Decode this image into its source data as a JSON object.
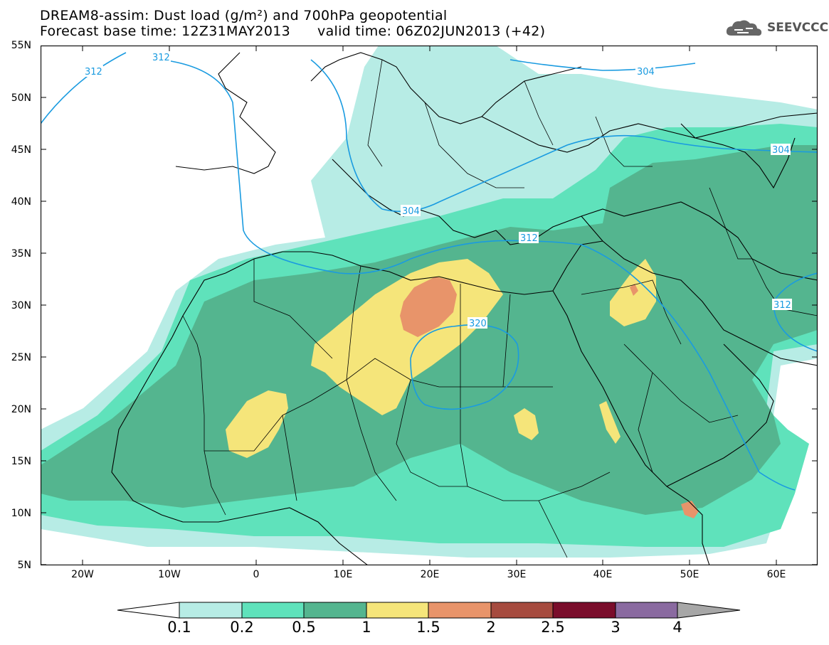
{
  "title": {
    "line1": "DREAM8-assim: Dust load (g/m²) and 700hPa geopotential",
    "base_label": "Forecast base time: 12Z31MAY2013",
    "valid_label": "valid time: 06Z02JUN2013 (+42)"
  },
  "logo": {
    "text": "SEEVCCC",
    "icon": "cloud-icon"
  },
  "map": {
    "lat_ticks": [
      "55N",
      "50N",
      "45N",
      "40N",
      "35N",
      "30N",
      "25N",
      "20N",
      "15N",
      "10N",
      "5N"
    ],
    "lon_ticks": [
      "20W",
      "10W",
      "0",
      "10E",
      "20E",
      "30E",
      "40E",
      "50E",
      "60E"
    ],
    "contour_labels": [
      "312",
      "312",
      "304",
      "304",
      "304",
      "312",
      "320",
      "312"
    ],
    "contour_color": "#1a9be0"
  },
  "colorbar": {
    "labels": [
      "0.1",
      "0.2",
      "0.5",
      "1",
      "1.5",
      "2",
      "2.5",
      "3",
      "4"
    ],
    "colors": [
      "#b7ece5",
      "#5fe2bb",
      "#54b58f",
      "#f5e57a",
      "#e8946a",
      "#a64b3f",
      "#7a0d2b",
      "#8a6aa0",
      "#a7a7a7"
    ]
  },
  "palette": {
    "c01": "#b7ece5",
    "c02": "#5fe2bb",
    "c05": "#54b58f",
    "c1": "#f5e57a",
    "c15": "#e8946a"
  }
}
